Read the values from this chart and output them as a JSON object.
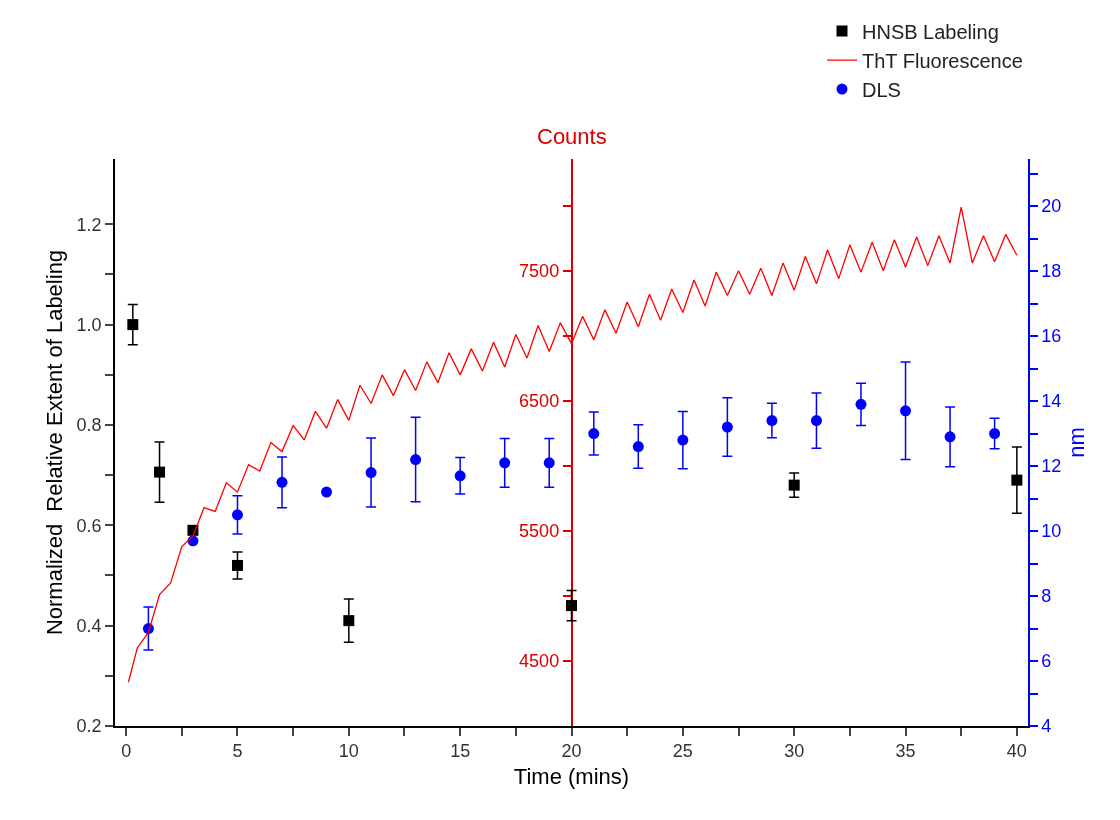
{
  "chart_data": {
    "type": "scatter",
    "xlabel": "Time (mins)",
    "ylabel": "Normalized  Relative Extent of Labeling",
    "y2label": "nm",
    "y3label": "Counts",
    "xlim": [
      -0.5,
      40.5
    ],
    "xticks": [
      0,
      {
        "value": 2.5,
        "label": null
      },
      5,
      {
        "value": 7.5,
        "label": null
      },
      10,
      {
        "value": 12.5,
        "label": null
      },
      15,
      {
        "value": 17.5,
        "label": null
      },
      20,
      {
        "value": 22.5,
        "label": null
      },
      25,
      {
        "value": 27.5,
        "label": null
      },
      30,
      {
        "value": 32.5,
        "label": null
      },
      35,
      {
        "value": 37.5,
        "label": null
      },
      40
    ],
    "ylim": [
      0.2,
      1.33
    ],
    "yticks": [
      {
        "value": 0.2,
        "label": "0.2"
      },
      {
        "value": 0.3,
        "label": null
      },
      {
        "value": 0.4,
        "label": "0.4"
      },
      {
        "value": 0.5,
        "label": null
      },
      {
        "value": 0.6,
        "label": "0.6"
      },
      {
        "value": 0.7,
        "label": null
      },
      {
        "value": 0.8,
        "label": "0.8"
      },
      {
        "value": 0.9,
        "label": null
      },
      {
        "value": 1.0,
        "label": "1.0"
      },
      {
        "value": 1.1,
        "label": null
      },
      {
        "value": 1.2,
        "label": "1.2"
      }
    ],
    "y2lim": [
      4,
      21.45
    ],
    "y2ticks": [
      4,
      {
        "value": 5,
        "label": null
      },
      6,
      {
        "value": 7,
        "label": null
      },
      8,
      {
        "value": 9,
        "label": null
      },
      10,
      {
        "value": 11,
        "label": null
      },
      12,
      {
        "value": 13,
        "label": null
      },
      14,
      {
        "value": 15,
        "label": null
      },
      16,
      {
        "value": 17,
        "label": null
      },
      18,
      {
        "value": 19,
        "label": null
      },
      20,
      {
        "value": 21,
        "label": null
      }
    ],
    "y3lim": [
      4000,
      8360
    ],
    "y3ticks": [
      4500,
      {
        "value": 5000,
        "label": null
      },
      5500,
      {
        "value": 6000,
        "label": null
      },
      6500,
      {
        "value": 7000,
        "label": null
      },
      7500,
      {
        "value": 8000,
        "label": null
      }
    ],
    "legend": "top right",
    "series": [
      {
        "name": "HNSB Labeling",
        "marker": "square",
        "color": "#000000",
        "x": [
          0.3,
          1.5,
          3,
          5,
          10,
          20,
          30,
          40
        ],
        "values": [
          1.0,
          0.706,
          0.59,
          0.52,
          0.41,
          0.44,
          0.68,
          0.69
        ],
        "errors": [
          0.04,
          0.06,
          null,
          0.027,
          0.043,
          0.03,
          0.024,
          0.066
        ]
      },
      {
        "name": "ThT Fluorescence",
        "type": "line",
        "axis": "y3",
        "marker": "none",
        "line_style": "solid",
        "color": "#ff0000",
        "x": [
          0.1,
          0.5,
          1,
          1.5,
          2,
          2.5,
          3,
          3.5,
          4,
          4.5,
          5,
          5.5,
          6,
          6.5,
          7,
          7.5,
          8,
          8.5,
          9,
          9.5,
          10,
          10.5,
          11,
          11.5,
          12,
          12.5,
          13,
          13.5,
          14,
          14.5,
          15,
          15.5,
          16,
          16.5,
          17,
          17.5,
          18,
          18.5,
          19,
          19.5,
          20,
          20.5,
          21,
          21.5,
          22,
          22.5,
          23,
          23.5,
          24,
          24.5,
          25,
          25.5,
          26,
          26.5,
          27,
          27.5,
          28,
          28.5,
          29,
          29.5,
          30,
          30.5,
          31,
          31.5,
          32,
          32.5,
          33,
          33.5,
          34,
          34.5,
          35,
          35.5,
          36,
          36.5,
          37,
          37.5,
          38,
          38.5,
          39,
          39.5,
          40
        ],
        "values": [
          4335,
          4600,
          4720,
          5010,
          5100,
          5380,
          5460,
          5680,
          5650,
          5870,
          5800,
          6010,
          5960,
          6180,
          6110,
          6310,
          6200,
          6420,
          6290,
          6510,
          6350,
          6620,
          6480,
          6700,
          6540,
          6740,
          6580,
          6800,
          6640,
          6870,
          6700,
          6900,
          6730,
          6950,
          6760,
          7010,
          6830,
          7080,
          6880,
          7100,
          6940,
          7150,
          6970,
          7200,
          7020,
          7260,
          7070,
          7320,
          7120,
          7360,
          7180,
          7430,
          7230,
          7490,
          7310,
          7500,
          7320,
          7520,
          7310,
          7560,
          7350,
          7610,
          7400,
          7660,
          7440,
          7700,
          7490,
          7720,
          7500,
          7740,
          7530,
          7760,
          7540,
          7770,
          7560,
          7990,
          7560,
          7770,
          7570,
          7780,
          7620
        ]
      },
      {
        "name": "DLS",
        "axis": "y2",
        "marker": "circle",
        "color": "#0000ff",
        "x": [
          1,
          3,
          5,
          7,
          9,
          11,
          13,
          15,
          17,
          19,
          21,
          23,
          25,
          27,
          29,
          31,
          33,
          35,
          37,
          39
        ],
        "values": [
          7.0,
          9.7,
          10.5,
          11.5,
          11.2,
          11.8,
          12.2,
          11.7,
          12.1,
          12.1,
          13.0,
          12.6,
          12.8,
          13.2,
          13.4,
          13.4,
          13.9,
          13.7,
          12.9,
          13.0
        ],
        "errors": [
          0.66,
          null,
          0.59,
          0.78,
          null,
          1.06,
          1.3,
          0.56,
          0.75,
          0.75,
          0.66,
          0.67,
          0.88,
          0.9,
          0.53,
          0.85,
          0.65,
          1.5,
          0.92,
          0.47
        ]
      }
    ]
  }
}
